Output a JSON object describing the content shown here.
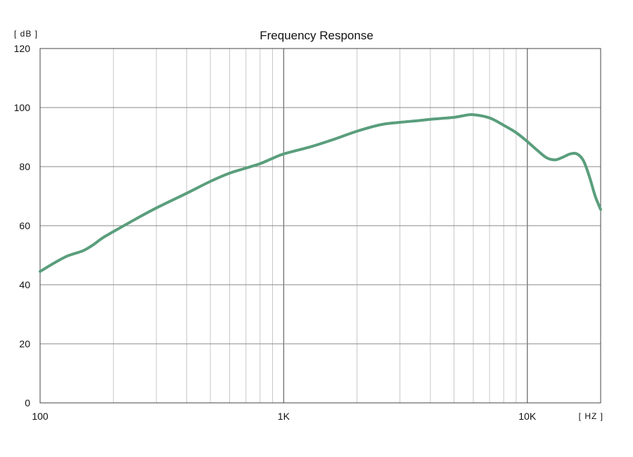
{
  "chart_data": {
    "type": "line",
    "title": "Frequency Response",
    "ylabel": "[ dB ]",
    "xlabel": "[ HZ ]",
    "xscale": "log",
    "xlim": [
      100,
      20000
    ],
    "ylim": [
      0,
      120
    ],
    "grid": true,
    "line_color": "#5a9e7c",
    "x_ticks": [
      {
        "value": 100,
        "label": "100"
      },
      {
        "value": 1000,
        "label": "1K"
      },
      {
        "value": 10000,
        "label": "10K"
      }
    ],
    "y_ticks": [
      {
        "value": 0,
        "label": "0"
      },
      {
        "value": 20,
        "label": "20"
      },
      {
        "value": 40,
        "label": "40"
      },
      {
        "value": 60,
        "label": "60"
      },
      {
        "value": 80,
        "label": "80"
      },
      {
        "value": 100,
        "label": "100"
      },
      {
        "value": 120,
        "label": "120"
      }
    ],
    "series": [
      {
        "points": [
          [
            100,
            44.5
          ],
          [
            115,
            47.5
          ],
          [
            130,
            49.8
          ],
          [
            150,
            51.5
          ],
          [
            165,
            53.5
          ],
          [
            180,
            55.8
          ],
          [
            200,
            58.0
          ],
          [
            250,
            62.5
          ],
          [
            300,
            66.0
          ],
          [
            400,
            71.0
          ],
          [
            500,
            75.0
          ],
          [
            600,
            77.8
          ],
          [
            700,
            79.5
          ],
          [
            800,
            81.0
          ],
          [
            900,
            82.8
          ],
          [
            1000,
            84.3
          ],
          [
            1300,
            86.8
          ],
          [
            1600,
            89.2
          ],
          [
            2000,
            92.0
          ],
          [
            2500,
            94.2
          ],
          [
            3000,
            95.0
          ],
          [
            3500,
            95.5
          ],
          [
            4000,
            96.0
          ],
          [
            5000,
            96.7
          ],
          [
            5500,
            97.3
          ],
          [
            6000,
            97.6
          ],
          [
            7000,
            96.5
          ],
          [
            8000,
            94.0
          ],
          [
            9000,
            91.5
          ],
          [
            10000,
            88.5
          ],
          [
            11000,
            85.5
          ],
          [
            12000,
            83.0
          ],
          [
            13000,
            82.3
          ],
          [
            14000,
            83.2
          ],
          [
            15000,
            84.3
          ],
          [
            16000,
            84.3
          ],
          [
            17000,
            82.0
          ],
          [
            18000,
            76.5
          ],
          [
            19000,
            70.0
          ],
          [
            20000,
            65.5
          ]
        ]
      }
    ]
  }
}
